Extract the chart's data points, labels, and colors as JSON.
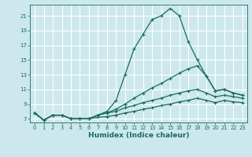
{
  "xlabel": "Humidex (Indice chaleur)",
  "ylabel": "",
  "bg_color": "#cce8ec",
  "grid_color": "#b0d8dc",
  "line_color": "#1a6b5a",
  "xlim": [
    -0.5,
    23.5
  ],
  "ylim": [
    6.5,
    22.5
  ],
  "xticks": [
    0,
    1,
    2,
    3,
    4,
    5,
    6,
    7,
    8,
    9,
    10,
    11,
    12,
    13,
    14,
    15,
    16,
    17,
    18,
    19,
    20,
    21,
    22,
    23
  ],
  "yticks": [
    7,
    9,
    11,
    13,
    15,
    17,
    19,
    21
  ],
  "line1_x": [
    0,
    1,
    2,
    3,
    4,
    5,
    6,
    7,
    8,
    9,
    10,
    11,
    12,
    13,
    14,
    15,
    16,
    17,
    18,
    19,
    20,
    21,
    22,
    23
  ],
  "line1_y": [
    7.8,
    6.8,
    7.5,
    7.5,
    7.0,
    7.0,
    7.0,
    7.5,
    8.0,
    9.5,
    13.0,
    16.5,
    18.5,
    20.5,
    21.0,
    22.0,
    21.0,
    17.5,
    15.0,
    12.8,
    10.8,
    11.0,
    10.5,
    10.2
  ],
  "line2_x": [
    0,
    1,
    2,
    3,
    4,
    5,
    6,
    7,
    8,
    9,
    10,
    11,
    12,
    13,
    14,
    15,
    16,
    17,
    18,
    19,
    20,
    21,
    22,
    23
  ],
  "line2_y": [
    7.8,
    6.8,
    7.5,
    7.5,
    7.0,
    7.0,
    7.0,
    7.5,
    7.8,
    8.3,
    9.0,
    9.8,
    10.5,
    11.2,
    11.8,
    12.5,
    13.2,
    13.8,
    14.2,
    12.8,
    10.8,
    11.0,
    10.5,
    10.2
  ],
  "line3_x": [
    0,
    1,
    2,
    3,
    4,
    5,
    6,
    7,
    8,
    9,
    10,
    11,
    12,
    13,
    14,
    15,
    16,
    17,
    18,
    19,
    20,
    21,
    22,
    23
  ],
  "line3_y": [
    7.8,
    6.8,
    7.5,
    7.5,
    7.0,
    7.0,
    7.0,
    7.5,
    7.8,
    8.0,
    8.5,
    8.8,
    9.2,
    9.5,
    9.8,
    10.2,
    10.5,
    10.8,
    11.0,
    10.5,
    10.0,
    10.2,
    10.0,
    9.8
  ],
  "line4_x": [
    0,
    1,
    2,
    3,
    4,
    5,
    6,
    7,
    8,
    9,
    10,
    11,
    12,
    13,
    14,
    15,
    16,
    17,
    18,
    19,
    20,
    21,
    22,
    23
  ],
  "line4_y": [
    7.8,
    6.8,
    7.5,
    7.5,
    7.0,
    7.0,
    7.0,
    7.2,
    7.3,
    7.5,
    7.8,
    8.0,
    8.3,
    8.5,
    8.8,
    9.0,
    9.3,
    9.5,
    9.8,
    9.5,
    9.2,
    9.5,
    9.3,
    9.2
  ]
}
